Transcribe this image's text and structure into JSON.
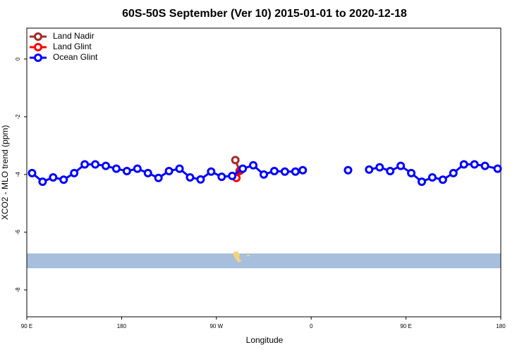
{
  "chart_data": {
    "type": "line",
    "title": "60S-50S September (Ver 10)   2015-01-01 to 2020-12-18",
    "x_label": "Longitude",
    "y_label": "XCO2 - MLO trend (ppm)",
    "xlim": [
      90,
      540
    ],
    "xticks": [
      {
        "value": 90,
        "label": "90 E"
      },
      180,
      {
        "value": 270,
        "label": "90 W"
      },
      {
        "value": 360,
        "label": "0"
      },
      {
        "value": 450,
        "label": "90 E"
      },
      {
        "value": 540,
        "label": "180"
      }
    ],
    "ylim": [
      -8.93,
      1.07
    ],
    "yticks": [
      0,
      -2,
      -4,
      -6,
      -8
    ],
    "legend": "top-left",
    "series": [
      {
        "name": "Land Nadir",
        "color": "#a52a2a",
        "x": [
          288,
          292
        ],
        "values": [
          -3.5,
          -3.88
        ]
      },
      {
        "name": "Land Glint",
        "color": "#ff0000",
        "x": [
          289,
          293
        ],
        "values": [
          -4.12,
          -3.85
        ]
      },
      {
        "name": "Ocean Glint",
        "color": "#0000ff",
        "x": [
          95,
          105,
          115,
          125,
          135,
          145,
          155,
          165,
          175,
          185,
          195,
          205,
          215,
          225,
          235,
          245,
          255,
          265,
          275,
          285,
          295,
          305,
          315,
          325,
          335,
          345,
          352,
          375,
          395,
          405,
          415,
          425,
          435,
          445,
          455,
          465,
          475,
          485,
          495,
          505,
          515,
          525,
          537
        ],
        "values": [
          -3.95,
          -4.25,
          -4.1,
          -4.18,
          -3.95,
          -3.65,
          -3.65,
          -3.7,
          -3.8,
          -3.88,
          -3.8,
          -3.95,
          -4.12,
          -3.88,
          -3.8,
          -4.1,
          -4.17,
          -3.9,
          -4.08,
          -4.05,
          -3.8,
          -3.68,
          -4.0,
          -3.88,
          -3.9,
          -3.9,
          -3.85,
          null,
          -3.85,
          null,
          -3.83,
          -3.75,
          -3.88,
          -3.7,
          -3.95,
          -4.25,
          -4.1,
          -4.18,
          -3.95,
          -3.65,
          -3.65,
          -3.7,
          -3.8
        ]
      }
    ]
  }
}
